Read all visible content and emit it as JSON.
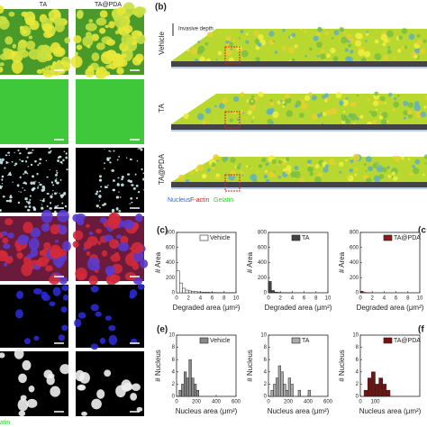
{
  "figure": {
    "columns": [
      "TA",
      "TA@PDA"
    ],
    "bottom_left": "atin",
    "panel_b": {
      "label": "(b)",
      "depth": "Invasive depth",
      "rows": [
        "Vehicle",
        "TA",
        "TA@PDA"
      ],
      "legend": [
        "Nucleus",
        "F-actin",
        "Gelatin"
      ]
    },
    "panel_labels": [
      "(c)",
      "(c",
      "(e)",
      "(f"
    ]
  },
  "chart_data": [
    {
      "type": "histogram",
      "xlabel": "Degraded area (μm²)",
      "ylabel": "# Area",
      "bins": [
        0,
        0.5,
        1,
        1.5,
        2,
        2.5,
        3,
        3.5,
        4,
        4.5,
        5,
        5.5,
        6,
        6.5,
        7,
        7.5,
        8,
        8.5,
        9,
        9.5,
        10
      ],
      "series": [
        {
          "name": "Vehicle",
          "color": "#ffffff",
          "values": [
            290,
            130,
            60,
            35,
            25,
            20,
            15,
            12,
            10,
            8,
            6,
            5,
            4,
            3,
            3,
            2,
            2,
            1,
            1,
            1
          ]
        }
      ],
      "xlim": [
        0,
        10
      ],
      "xticks": [
        0,
        2,
        4,
        6,
        8,
        10
      ],
      "ylim": [
        0,
        800
      ],
      "yticks": [
        0,
        200,
        400,
        600,
        800
      ]
    },
    {
      "type": "histogram",
      "xlabel": "Degraded area (μm²)",
      "ylabel": "# Area",
      "bins": [
        0,
        0.5,
        1,
        1.5,
        2,
        2.5,
        3,
        3.5,
        4,
        4.5,
        5,
        5.5,
        6,
        6.5,
        7,
        7.5,
        8,
        8.5,
        9,
        9.5,
        10
      ],
      "series": [
        {
          "name": "TA",
          "color": "#444444",
          "values": [
            150,
            30,
            10,
            5,
            3,
            2,
            1,
            1,
            0,
            0,
            0,
            0,
            0,
            0,
            0,
            0,
            0,
            0,
            0,
            0
          ]
        }
      ],
      "xlim": [
        0,
        10
      ],
      "xticks": [
        0,
        2,
        4,
        6,
        8,
        10
      ],
      "ylim": [
        0,
        800
      ],
      "yticks": [
        0,
        200,
        400,
        600,
        800
      ]
    },
    {
      "type": "histogram",
      "xlabel": "Degraded area (μm²)",
      "ylabel": "# Area",
      "bins": [
        0,
        0.5,
        1,
        1.5,
        2,
        2.5,
        3,
        3.5,
        4,
        4.5,
        5,
        5.5,
        6,
        6.5,
        7,
        7.5,
        8,
        8.5,
        9,
        9.5,
        10
      ],
      "series": [
        {
          "name": "TA@PDA",
          "color": "#8b1a1a",
          "values": [
            20,
            5,
            2,
            1,
            0,
            0,
            0,
            0,
            0,
            0,
            0,
            0,
            0,
            0,
            0,
            0,
            0,
            0,
            0,
            0
          ]
        }
      ],
      "xlim": [
        0,
        10
      ],
      "xticks": [
        0,
        2,
        4,
        6,
        8,
        10
      ],
      "ylim": [
        0,
        800
      ],
      "yticks": [
        0,
        200,
        400,
        600,
        800
      ]
    },
    {
      "type": "histogram",
      "xlabel": "Nucleus area (μm²)",
      "ylabel": "# Nucleus",
      "bins": [
        0,
        25,
        50,
        75,
        100,
        125,
        150,
        175,
        200,
        225,
        250,
        275,
        300,
        325,
        350,
        375,
        400,
        425,
        450
      ],
      "series": [
        {
          "name": "Vehicle",
          "color": "#888888",
          "values": [
            0,
            1,
            2,
            4,
            3,
            6,
            3,
            2,
            1,
            0,
            0,
            0,
            0,
            0,
            0,
            0,
            0,
            0
          ]
        }
      ],
      "xlim": [
        0,
        600
      ],
      "xticks": [
        0,
        200,
        400,
        600
      ],
      "ylim": [
        0,
        10
      ],
      "yticks": [
        0,
        2,
        4,
        6,
        8,
        10
      ]
    },
    {
      "type": "histogram",
      "xlabel": "Nucleus area (μm²)",
      "ylabel": "# Nucleus",
      "bins": [
        0,
        25,
        50,
        75,
        100,
        125,
        150,
        175,
        200,
        225,
        250,
        275,
        300,
        325,
        350,
        375,
        400,
        425,
        450
      ],
      "series": [
        {
          "name": "TA",
          "color": "#aaaaaa",
          "values": [
            0,
            1,
            2,
            3,
            5,
            4,
            2,
            1,
            3,
            2,
            0,
            0,
            1,
            0,
            0,
            0,
            1,
            0
          ]
        }
      ],
      "xlim": [
        0,
        600
      ],
      "xticks": [
        0,
        200,
        400,
        600
      ],
      "ylim": [
        0,
        10
      ],
      "yticks": [
        0,
        2,
        4,
        6,
        8,
        10
      ]
    },
    {
      "type": "histogram",
      "xlabel": "Nucleus area (μm²)",
      "ylabel": "# Nucleus",
      "bins": [
        0,
        25,
        50,
        75,
        100,
        125,
        150,
        175,
        200,
        225,
        250,
        275,
        300,
        325,
        350,
        375,
        400,
        425,
        450
      ],
      "series": [
        {
          "name": "TA@PDA",
          "color": "#7a1010",
          "values": [
            0,
            1,
            3,
            4,
            2,
            3,
            2,
            1,
            0,
            0,
            0,
            0,
            0,
            0,
            0,
            0,
            0,
            0
          ]
        }
      ],
      "xlim": [
        0,
        400
      ],
      "xticks": [
        0,
        100
      ],
      "ylim": [
        0,
        10
      ],
      "yticks": [
        0,
        2,
        4,
        6,
        8,
        10
      ]
    }
  ]
}
